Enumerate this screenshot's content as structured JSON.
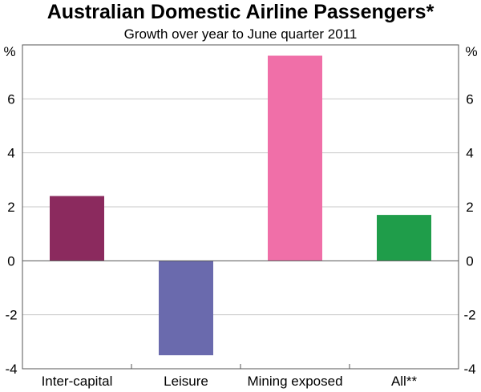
{
  "chart_data": {
    "type": "bar",
    "title": "Australian Domestic Airline Passengers*",
    "subtitle": "Growth over year to June quarter 2011",
    "unit_left": "%",
    "unit_right": "%",
    "categories": [
      "Inter-capital",
      "Leisure",
      "Mining exposed",
      "All**"
    ],
    "values": [
      2.4,
      -3.5,
      7.6,
      1.7
    ],
    "colors": [
      "#8b2a5e",
      "#6a6aad",
      "#f06fa8",
      "#1f9d4a"
    ],
    "ylim": [
      -4,
      8
    ],
    "yticks": [
      -4,
      -2,
      0,
      2,
      4,
      6
    ],
    "gridlines": true,
    "legend": "none"
  }
}
